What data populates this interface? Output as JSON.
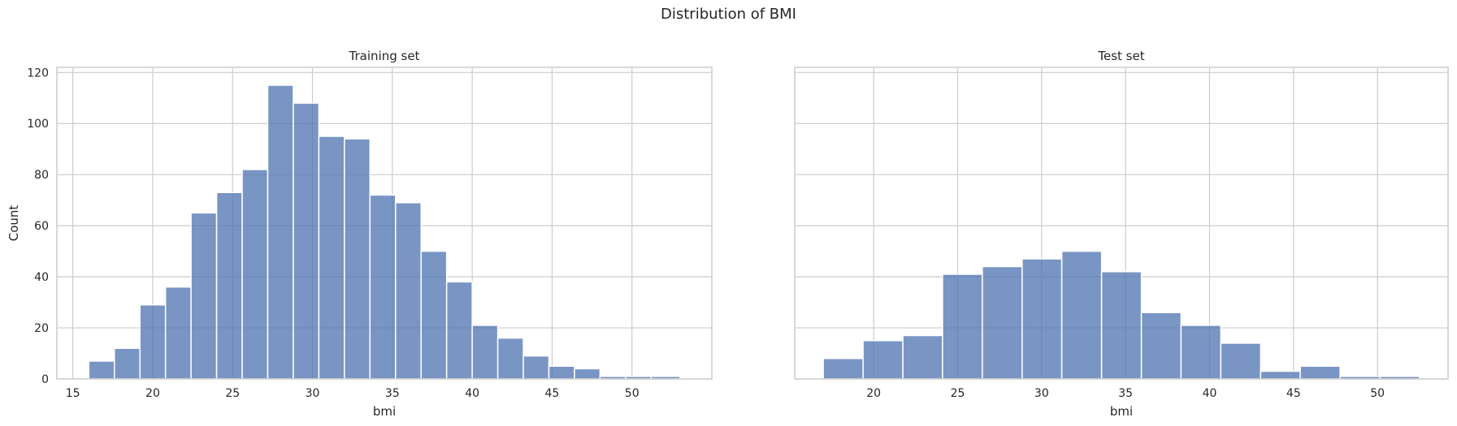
{
  "figure": {
    "title": "Distribution of BMI"
  },
  "chart_data": [
    {
      "type": "bar",
      "title": "Training set",
      "xlabel": "bmi",
      "ylabel": "Count",
      "xlim": [
        14,
        55
      ],
      "ylim": [
        0,
        122
      ],
      "xticks": [
        15,
        20,
        25,
        30,
        35,
        40,
        45,
        50
      ],
      "yticks": [
        0,
        20,
        40,
        60,
        80,
        100,
        120
      ],
      "grid": true,
      "bar_color": "#4c72b0",
      "bin_edges": [
        16.0,
        17.6,
        19.2,
        20.8,
        22.4,
        24.0,
        25.6,
        27.2,
        28.8,
        30.4,
        32.0,
        33.6,
        35.2,
        36.8,
        38.4,
        40.0,
        41.6,
        43.2,
        44.8,
        46.4,
        48.0,
        49.6,
        51.2,
        53.0
      ],
      "values": [
        7,
        12,
        29,
        36,
        65,
        73,
        82,
        115,
        108,
        95,
        94,
        72,
        69,
        50,
        38,
        21,
        16,
        9,
        5,
        4,
        1,
        1,
        1
      ]
    },
    {
      "type": "bar",
      "title": "Test set",
      "xlabel": "bmi",
      "ylabel": "",
      "xlim": [
        15.3,
        54.2
      ],
      "ylim": [
        0,
        122
      ],
      "xticks": [
        20,
        25,
        30,
        35,
        40,
        45,
        50
      ],
      "yticks": [
        0,
        20,
        40,
        60,
        80,
        100,
        120
      ],
      "grid": true,
      "bar_color": "#4c72b0",
      "bin_edges": [
        17.0,
        19.37,
        21.74,
        24.1,
        26.47,
        28.84,
        31.2,
        33.57,
        35.94,
        38.3,
        40.67,
        43.04,
        45.4,
        47.77,
        50.14,
        52.5
      ],
      "values": [
        8,
        15,
        17,
        41,
        44,
        47,
        50,
        42,
        26,
        21,
        14,
        3,
        5,
        1,
        1
      ]
    }
  ]
}
